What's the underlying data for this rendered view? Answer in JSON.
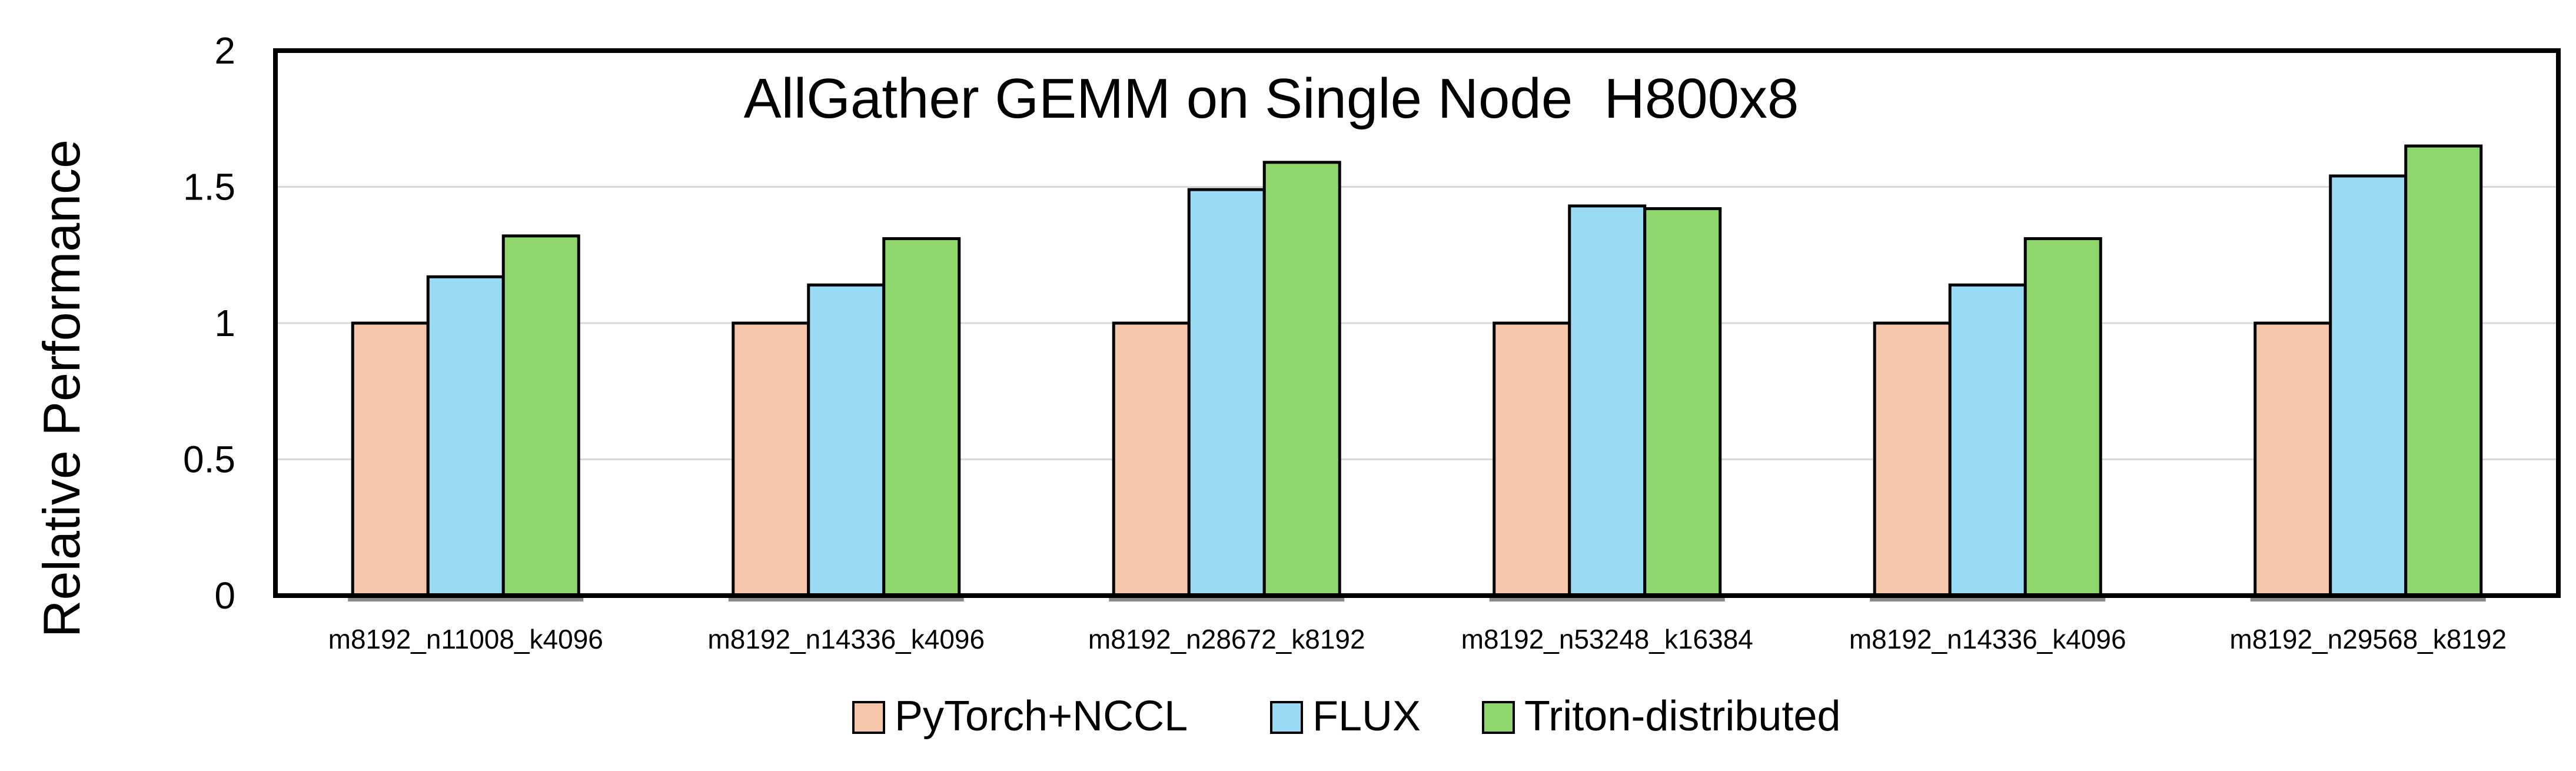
{
  "chart_data": {
    "type": "bar",
    "title": "AllGather GEMM on Single Node  H800x8",
    "xlabel": "",
    "ylabel": "Relative Performance",
    "ylim": [
      0,
      2
    ],
    "yticks": [
      "0",
      "0.5",
      "1",
      "1.5",
      "2"
    ],
    "grid": true,
    "legend_position": "bottom",
    "categories": [
      "m8192_n11008_k4096",
      "m8192_n14336_k4096",
      "m8192_n28672_k8192",
      "m8192_n53248_k16384",
      "m8192_n14336_k4096",
      "m8192_n29568_k8192"
    ],
    "series": [
      {
        "name": "PyTorch+NCCL",
        "color": "#f6c6ab",
        "values": [
          1.0,
          1.0,
          1.0,
          1.0,
          1.0,
          1.0
        ]
      },
      {
        "name": "FLUX",
        "color": "#99dbf5",
        "values": [
          1.17,
          1.14,
          1.49,
          1.43,
          1.14,
          1.54
        ]
      },
      {
        "name": "Triton-distributed",
        "color": "#8fd66d",
        "values": [
          1.32,
          1.31,
          1.59,
          1.42,
          1.31,
          1.65
        ]
      }
    ]
  }
}
